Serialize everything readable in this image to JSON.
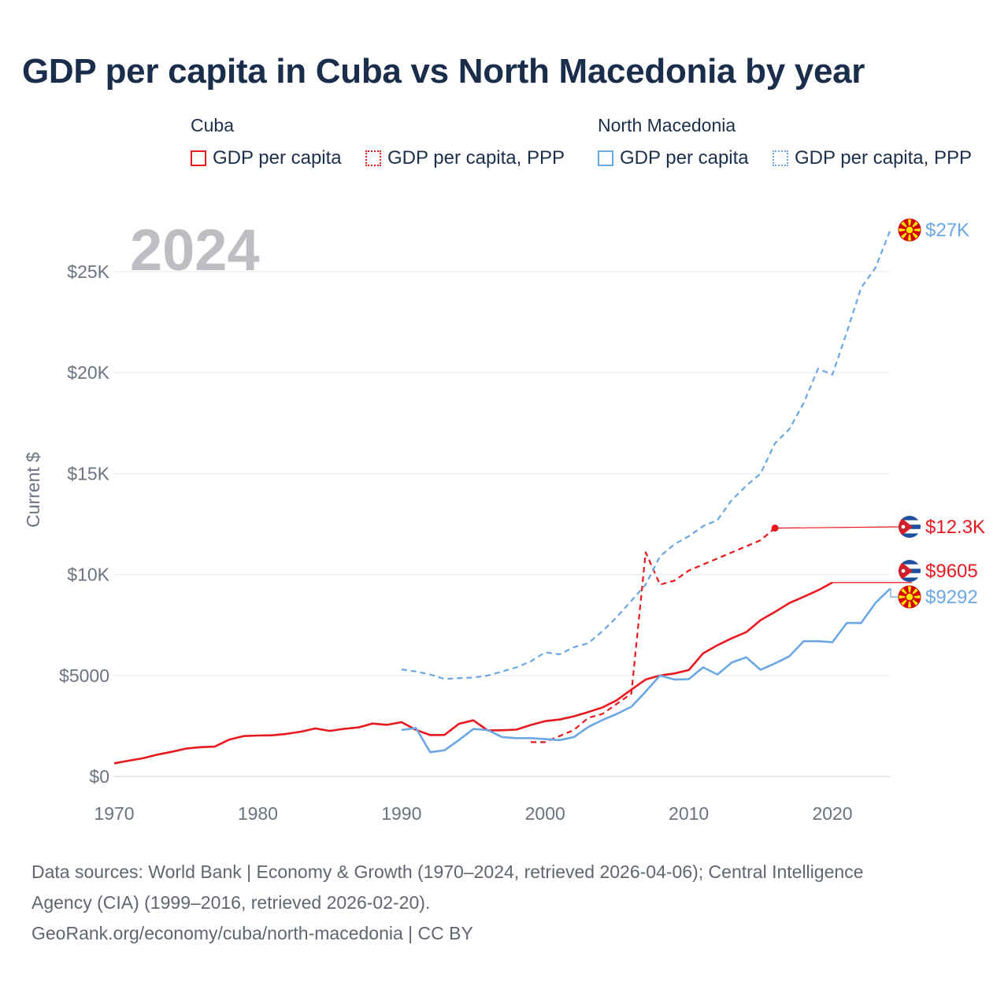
{
  "title": "GDP per capita in Cuba vs North Macedonia by year",
  "legend": {
    "groups": [
      {
        "name": "Cuba",
        "items": [
          {
            "label": "GDP per capita",
            "color": "#e8191e",
            "style": "solid"
          },
          {
            "label": "GDP per capita, PPP",
            "color": "#e8191e",
            "style": "dotted"
          }
        ]
      },
      {
        "name": "North Macedonia",
        "items": [
          {
            "label": "GDP per capita",
            "color": "#6aa7e4",
            "style": "solid"
          },
          {
            "label": "GDP per capita, PPP",
            "color": "#6aa7e4",
            "style": "dotted"
          }
        ]
      }
    ]
  },
  "year_watermark": "2024",
  "footer": {
    "line1": "Data sources: World Bank | Economy & Growth (1970–2024, retrieved 2026-04-06); Central Intelligence",
    "line2": "Agency (CIA) (1999–2016, retrieved 2026-02-20).",
    "line3": "GeoRank.org/economy/cuba/north-macedonia | CC BY"
  },
  "chart_data": {
    "type": "line",
    "title": "GDP per capita in Cuba vs North Macedonia by year",
    "xlabel": "",
    "ylabel": "Current $",
    "xlim": [
      1970,
      2024
    ],
    "ylim": [
      0,
      27000
    ],
    "x_ticks": [
      1970,
      1980,
      1990,
      2000,
      2010,
      2020
    ],
    "y_ticks": [
      0,
      5000,
      10000,
      15000,
      20000,
      25000
    ],
    "y_tick_labels": [
      "$0",
      "$5000",
      "$10K",
      "$15K",
      "$20K",
      "$25K"
    ],
    "grid": true,
    "series": [
      {
        "name": "Cuba GDP per capita",
        "country": "Cuba",
        "color": "#e8191e",
        "dash": "solid",
        "end_label": "$9605",
        "x": [
          1970,
          1971,
          1972,
          1973,
          1974,
          1975,
          1976,
          1977,
          1978,
          1979,
          1980,
          1981,
          1982,
          1983,
          1984,
          1985,
          1986,
          1987,
          1988,
          1989,
          1990,
          1991,
          1992,
          1993,
          1994,
          1995,
          1996,
          1997,
          1998,
          1999,
          2000,
          2001,
          2002,
          2003,
          2004,
          2005,
          2006,
          2007,
          2008,
          2009,
          2010,
          2011,
          2012,
          2013,
          2014,
          2015,
          2016,
          2017,
          2018,
          2019,
          2020
        ],
        "values": [
          650,
          780,
          900,
          1080,
          1220,
          1380,
          1450,
          1480,
          1820,
          2000,
          2030,
          2040,
          2110,
          2220,
          2380,
          2260,
          2360,
          2430,
          2620,
          2560,
          2690,
          2310,
          2050,
          2060,
          2610,
          2780,
          2280,
          2290,
          2320,
          2550,
          2740,
          2820,
          2980,
          3190,
          3420,
          3780,
          4300,
          4800,
          5000,
          5100,
          5270,
          6100,
          6500,
          6850,
          7150,
          7740,
          8150,
          8590,
          8900,
          9220,
          9605
        ]
      },
      {
        "name": "Cuba GDP per capita, PPP",
        "country": "Cuba",
        "color": "#e8191e",
        "dash": "dashed",
        "end_label": "$12.3K",
        "x": [
          1999,
          2000,
          2001,
          2002,
          2003,
          2004,
          2005,
          2006,
          2007,
          2008,
          2009,
          2010,
          2011,
          2012,
          2013,
          2014,
          2015,
          2016
        ],
        "values": [
          1700,
          1700,
          2000,
          2300,
          2900,
          3100,
          3600,
          4100,
          11100,
          9500,
          9700,
          10200,
          10500,
          10800,
          11100,
          11400,
          11700,
          12300
        ]
      },
      {
        "name": "North Macedonia GDP per capita",
        "country": "North Macedonia",
        "color": "#6aa7e4",
        "dash": "solid",
        "end_label": "$9292",
        "x": [
          1990,
          1991,
          1992,
          1993,
          1994,
          1995,
          1996,
          1997,
          1998,
          1999,
          2000,
          2001,
          2002,
          2003,
          2004,
          2005,
          2006,
          2007,
          2008,
          2009,
          2010,
          2011,
          2012,
          2013,
          2014,
          2015,
          2016,
          2017,
          2018,
          2019,
          2020,
          2021,
          2022,
          2023,
          2024
        ],
        "values": [
          2300,
          2400,
          1200,
          1300,
          1800,
          2350,
          2300,
          1950,
          1900,
          1900,
          1850,
          1800,
          1950,
          2450,
          2800,
          3100,
          3450,
          4200,
          5000,
          4800,
          4820,
          5400,
          5050,
          5650,
          5900,
          5280,
          5600,
          5950,
          6700,
          6700,
          6650,
          7600,
          7600,
          8600,
          9292
        ]
      },
      {
        "name": "North Macedonia GDP per capita, PPP",
        "country": "North Macedonia",
        "color": "#6aa7e4",
        "dash": "dashed",
        "end_label": "$27K",
        "x": [
          1990,
          1991,
          1992,
          1993,
          1994,
          1995,
          1996,
          1997,
          1998,
          1999,
          2000,
          2001,
          2002,
          2003,
          2004,
          2005,
          2006,
          2007,
          2008,
          2009,
          2010,
          2011,
          2012,
          2013,
          2014,
          2015,
          2016,
          2017,
          2018,
          2019,
          2020,
          2021,
          2022,
          2023,
          2024
        ],
        "values": [
          5300,
          5200,
          5050,
          4830,
          4870,
          4900,
          5000,
          5200,
          5400,
          5700,
          6150,
          6050,
          6400,
          6600,
          7200,
          7900,
          8700,
          9500,
          10900,
          11500,
          11900,
          12400,
          12700,
          13700,
          14400,
          15000,
          16500,
          17200,
          18500,
          20200,
          19900,
          22000,
          24200,
          25200,
          27000
        ]
      }
    ]
  }
}
